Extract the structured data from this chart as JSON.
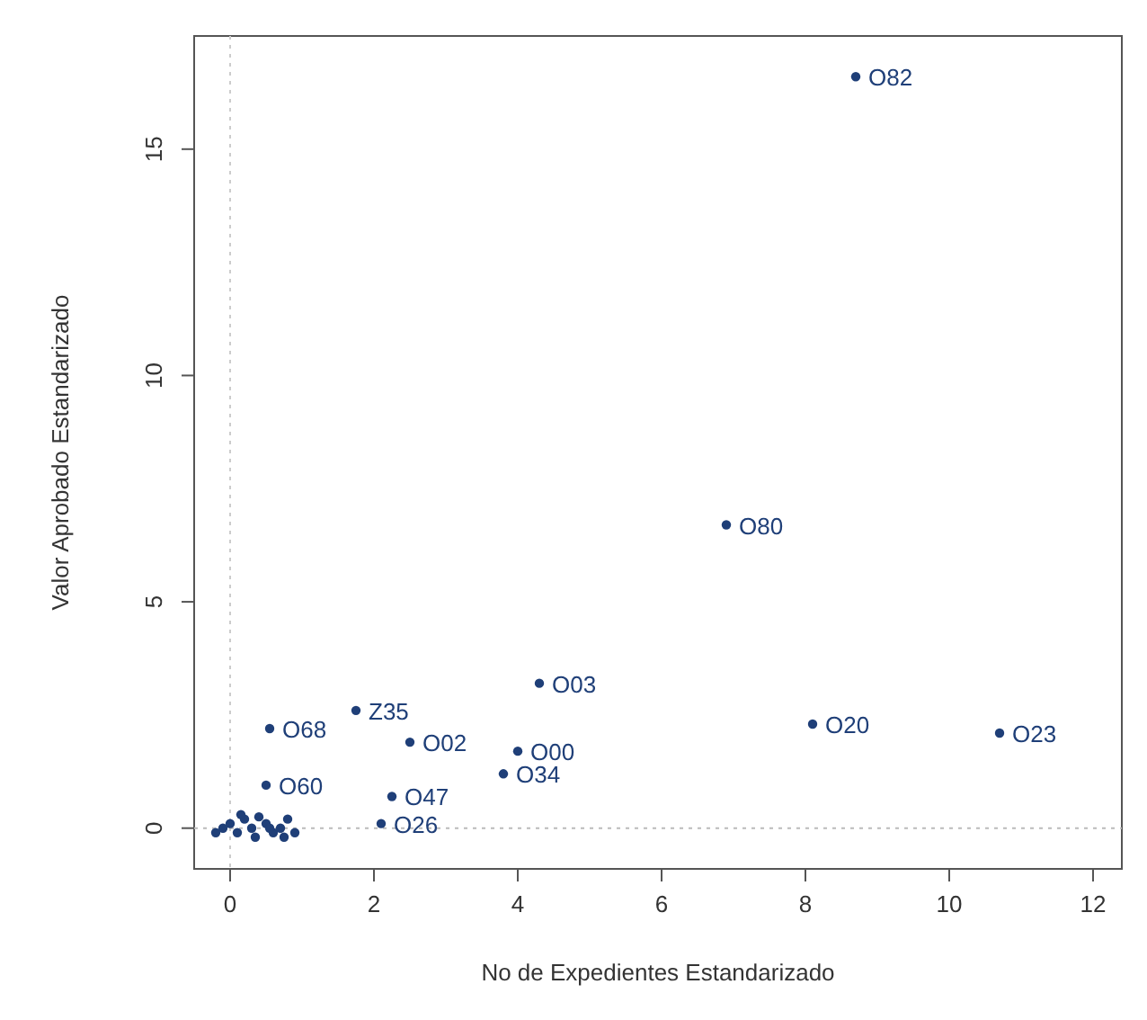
{
  "chart_data": {
    "type": "scatter",
    "xlabel": "No  de Expedientes Estandarizado",
    "ylabel": "Valor Aprobado Estandarizado",
    "xlim": [
      -0.5,
      12.4
    ],
    "ylim": [
      -0.9,
      17.5
    ],
    "xticks": [
      0,
      2,
      4,
      6,
      8,
      10,
      12
    ],
    "yticks": [
      0,
      5,
      10,
      15
    ],
    "marker": "circle",
    "grid": false,
    "ref_lines": [
      {
        "axis": "x",
        "value": 0,
        "color": "#cccccc",
        "line_style": "dotted"
      },
      {
        "axis": "y",
        "value": 0,
        "color": "#bbbbbb",
        "line_style": "dotted"
      }
    ],
    "series": [
      {
        "color": "#1f3f78",
        "x": [
          8.7,
          6.9,
          4.3,
          1.75,
          0.55,
          2.5,
          8.1,
          10.7,
          4.0,
          3.8,
          2.25,
          0.5,
          2.1,
          -0.2,
          -0.1,
          0.0,
          0.1,
          0.2,
          0.3,
          0.4,
          0.5,
          0.6,
          0.7,
          0.8,
          0.9,
          0.15,
          0.35,
          0.55,
          0.75
        ],
        "values": [
          16.6,
          6.7,
          3.2,
          2.6,
          2.2,
          1.9,
          2.3,
          2.1,
          1.7,
          1.2,
          0.7,
          0.95,
          0.1,
          -0.1,
          0.0,
          0.1,
          -0.1,
          0.2,
          0.0,
          0.25,
          0.1,
          -0.1,
          0.0,
          0.2,
          -0.1,
          0.3,
          -0.2,
          0.0,
          -0.2
        ]
      }
    ],
    "annotations": [
      {
        "text": "O82",
        "x": 8.7,
        "y": 16.6
      },
      {
        "text": "O80",
        "x": 6.9,
        "y": 6.7
      },
      {
        "text": "O03",
        "x": 4.3,
        "y": 3.2
      },
      {
        "text": "Z35",
        "x": 1.75,
        "y": 2.6
      },
      {
        "text": "O68",
        "x": 0.55,
        "y": 2.2
      },
      {
        "text": "O02",
        "x": 2.5,
        "y": 1.9
      },
      {
        "text": "O20",
        "x": 8.1,
        "y": 2.3
      },
      {
        "text": "O23",
        "x": 10.7,
        "y": 2.1
      },
      {
        "text": "O00",
        "x": 4.0,
        "y": 1.7
      },
      {
        "text": "O34",
        "x": 3.8,
        "y": 1.2
      },
      {
        "text": "O47",
        "x": 2.25,
        "y": 0.7
      },
      {
        "text": "O60",
        "x": 0.5,
        "y": 0.95
      },
      {
        "text": "O26",
        "x": 2.1,
        "y": 0.1
      }
    ]
  }
}
